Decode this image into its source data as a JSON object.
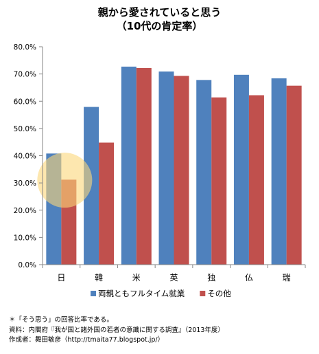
{
  "chart_data": {
    "type": "bar",
    "title": "親から愛されていると思う",
    "subtitle": "（10代の肯定率）",
    "categories": [
      "日",
      "韓",
      "米",
      "英",
      "独",
      "仏",
      "瑞"
    ],
    "y_tick_labels": [
      "0.0%",
      "10.0%",
      "20.0%",
      "30.0%",
      "40.0%",
      "50.0%",
      "60.0%",
      "70.0%",
      "80.0%"
    ],
    "ylim": [
      0,
      80
    ],
    "grid": false,
    "legend_position": "bottom",
    "series": [
      {
        "name": "両親ともフルタイム就業",
        "color": "#4f81bd",
        "values": [
          40.8,
          57.9,
          72.7,
          70.9,
          67.8,
          69.7,
          68.4
        ]
      },
      {
        "name": "その他",
        "color": "#c0504d",
        "values": [
          31.2,
          44.8,
          72.2,
          69.3,
          61.4,
          62.2,
          65.7
        ]
      }
    ],
    "highlight": {
      "category": "日",
      "color": "#fcd77a"
    }
  },
  "notes": [
    "＊「そう思う」の回答比率である。",
    "資料：内閣府『我が国と諸外国の若者の意識に関する調査』（2013年度）",
    "作成者：舞田敏彦（http://tmaita77.blogspot.jp/）"
  ]
}
